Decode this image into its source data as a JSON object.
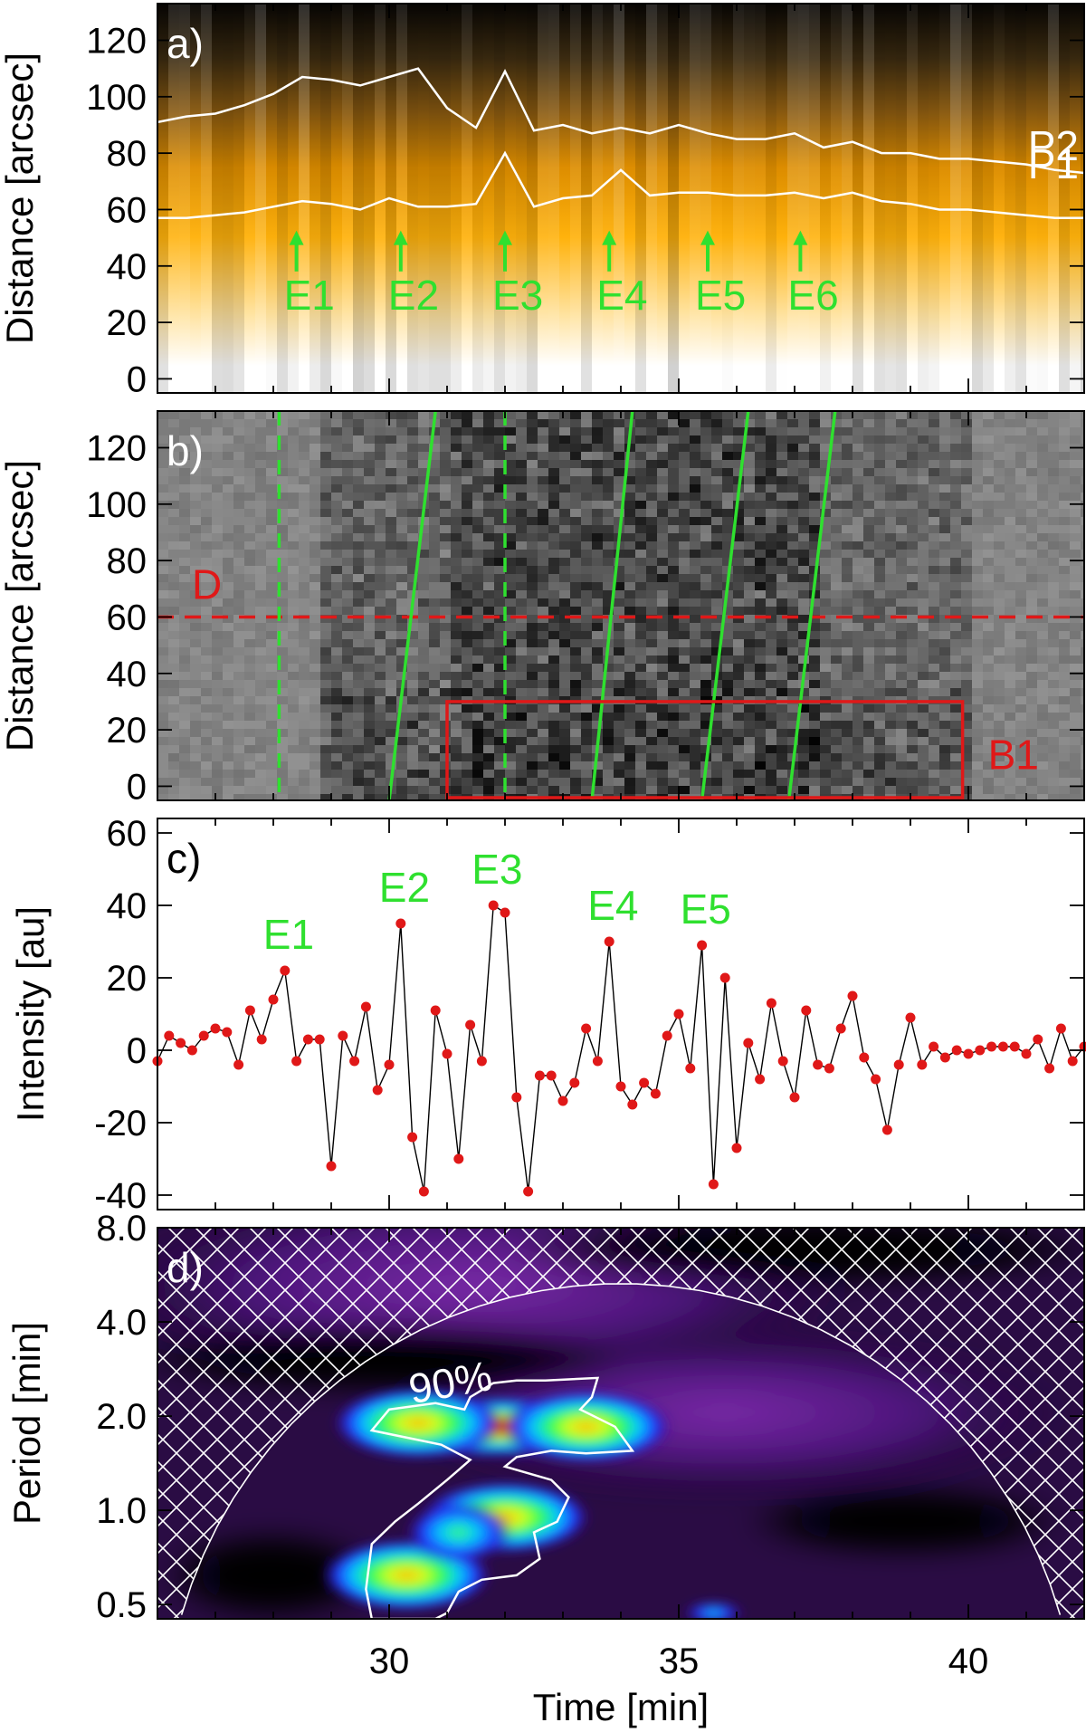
{
  "figure": {
    "xlabel": "Time [min]",
    "xticks": [
      "30",
      "35",
      "40"
    ],
    "xrange": [
      26.0,
      42.0
    ]
  },
  "colors": {
    "green": "#2fe02f",
    "red": "#e01818",
    "white": "#ffffff",
    "hatch": "#ffffff"
  },
  "chart_data": [
    {
      "panel": "a)",
      "type": "heatmap",
      "ylabel": "Distance [arcsec]",
      "yticks": [
        "0",
        "20",
        "40",
        "60",
        "80",
        "100",
        "120"
      ],
      "ylim": [
        -5,
        133
      ],
      "colormap": "white-orange-black",
      "series": [
        {
          "name": "P2",
          "x": [
            26.0,
            26.5,
            27.0,
            27.5,
            28.0,
            28.5,
            29.0,
            29.5,
            30.0,
            30.5,
            31.0,
            31.5,
            32.0,
            32.5,
            33.0,
            33.5,
            34.0,
            34.5,
            35.0,
            35.5,
            36.0,
            36.5,
            37.0,
            37.5,
            38.0,
            38.5,
            39.0,
            39.5,
            40.0,
            40.5,
            41.0,
            41.5,
            42.0
          ],
          "y": [
            91,
            93,
            94,
            97,
            101,
            107,
            106,
            104,
            107,
            110,
            96,
            89,
            109,
            88,
            90,
            87,
            89,
            87,
            90,
            87,
            85,
            85,
            87,
            82,
            84,
            80,
            80,
            78,
            78,
            77,
            76,
            74,
            73
          ]
        },
        {
          "name": "P1",
          "x": [
            26.0,
            26.5,
            27.0,
            27.5,
            28.0,
            28.5,
            29.0,
            29.5,
            30.0,
            30.5,
            31.0,
            31.5,
            32.0,
            32.5,
            33.0,
            33.5,
            34.0,
            34.5,
            35.0,
            35.5,
            36.0,
            36.5,
            37.0,
            37.5,
            38.0,
            38.5,
            39.0,
            39.5,
            40.0,
            40.5,
            41.0,
            41.5,
            42.0
          ],
          "y": [
            57,
            57,
            58,
            59,
            61,
            63,
            62,
            60,
            64,
            61,
            61,
            62,
            80,
            61,
            64,
            65,
            74,
            65,
            66,
            66,
            65,
            65,
            66,
            64,
            66,
            63,
            62,
            60,
            60,
            59,
            58,
            57,
            57
          ]
        }
      ],
      "curve_labels": [
        "P2",
        "P1"
      ],
      "events": [
        {
          "label": "E1",
          "t": 28.4
        },
        {
          "label": "E2",
          "t": 30.2
        },
        {
          "label": "E3",
          "t": 32.0
        },
        {
          "label": "E4",
          "t": 33.8
        },
        {
          "label": "E5",
          "t": 35.5
        },
        {
          "label": "E6",
          "t": 37.1
        }
      ]
    },
    {
      "panel": "b)",
      "type": "heatmap",
      "ylabel": "Distance [arcsec]",
      "yticks": [
        "0",
        "20",
        "40",
        "60",
        "80",
        "100",
        "120"
      ],
      "ylim": [
        -5,
        133
      ],
      "colormap": "gray (running difference)",
      "annotations": {
        "dashed_horizontal": {
          "label": "D",
          "y": 60
        },
        "box": {
          "label": "B1",
          "t0": 31.0,
          "t1": 39.9,
          "y0": -5,
          "y1": 30
        },
        "dashed_vertical_t": [
          28.1,
          32.0
        ],
        "slanted_lines": [
          {
            "t0": 30.0,
            "y0": -5,
            "t1": 30.8,
            "y1": 133
          },
          {
            "t0": 33.5,
            "y0": -5,
            "t1": 34.2,
            "y1": 133
          },
          {
            "t0": 35.4,
            "y0": -5,
            "t1": 36.2,
            "y1": 133
          },
          {
            "t0": 36.9,
            "y0": -5,
            "t1": 37.7,
            "y1": 133
          }
        ]
      }
    },
    {
      "panel": "c)",
      "type": "line",
      "ylabel": "Intensity [au]",
      "yticks": [
        "-40",
        "-20",
        "0",
        "20",
        "40",
        "60"
      ],
      "ylim": [
        -44,
        64
      ],
      "x": [
        26.0,
        26.2,
        26.4,
        26.6,
        26.8,
        27.0,
        27.2,
        27.4,
        27.6,
        27.8,
        28.0,
        28.2,
        28.4,
        28.6,
        28.8,
        29.0,
        29.2,
        29.4,
        29.6,
        29.8,
        30.0,
        30.2,
        30.4,
        30.6,
        30.8,
        31.0,
        31.2,
        31.4,
        31.6,
        31.8,
        32.0,
        32.2,
        32.4,
        32.6,
        32.8,
        33.0,
        33.2,
        33.4,
        33.6,
        33.8,
        34.0,
        34.2,
        34.4,
        34.6,
        34.8,
        35.0,
        35.2,
        35.4,
        35.6,
        35.8,
        36.0,
        36.2,
        36.4,
        36.6,
        36.8,
        37.0,
        37.2,
        37.4,
        37.6,
        37.8,
        38.0,
        38.2,
        38.4,
        38.6,
        38.8,
        39.0,
        39.2,
        39.4,
        39.6,
        39.8,
        40.0,
        40.2,
        40.4,
        40.6,
        40.8,
        41.0,
        41.2,
        41.4,
        41.6,
        41.8,
        42.0
      ],
      "values": [
        -3,
        4,
        2,
        0,
        4,
        6,
        5,
        -4,
        11,
        3,
        14,
        22,
        -3,
        3,
        3,
        -32,
        4,
        -3,
        12,
        -11,
        -4,
        35,
        -24,
        -39,
        11,
        -1,
        -30,
        7,
        -3,
        40,
        38,
        -13,
        -39,
        -7,
        -7,
        -14,
        -9,
        6,
        -3,
        30,
        -10,
        -15,
        -9,
        -12,
        4,
        10,
        -5,
        29,
        -37,
        20,
        -27,
        2,
        -8,
        13,
        -3,
        -13,
        11,
        -4,
        -5,
        6,
        15,
        -2,
        -8,
        -22,
        -4,
        9,
        -4,
        1,
        -2,
        0,
        -1,
        0,
        1,
        1,
        1,
        -1,
        3,
        -5,
        6,
        -3,
        1
      ],
      "peak_labels": [
        {
          "label": "E1",
          "t": 28.2
        },
        {
          "label": "E2",
          "t": 30.2
        },
        {
          "label": "E3",
          "t": 32.3
        },
        {
          "label": "E4",
          "t": 34.0
        },
        {
          "label": "E5",
          "t": 35.7
        }
      ]
    },
    {
      "panel": "d)",
      "type": "heatmap",
      "ylabel": "Period [min]",
      "yticks": [
        "0.5",
        "1.0",
        "2.0",
        "4.0",
        "8.0"
      ],
      "ylim_period": [
        0.45,
        8.0
      ],
      "yscale": "log",
      "contour_label": "90%",
      "blobs": [
        {
          "t": 31.8,
          "period": 1.85,
          "strength": "peak"
        },
        {
          "t": 30.5,
          "period": 1.9,
          "strength": "strong"
        },
        {
          "t": 33.4,
          "period": 1.85,
          "strength": "strong"
        },
        {
          "t": 32.0,
          "period": 0.95,
          "strength": "strong"
        },
        {
          "t": 30.3,
          "period": 0.62,
          "strength": "strong"
        },
        {
          "t": 31.2,
          "period": 0.85,
          "strength": "moderate"
        },
        {
          "t": 35.6,
          "period": 0.47,
          "strength": "weak"
        }
      ]
    }
  ]
}
